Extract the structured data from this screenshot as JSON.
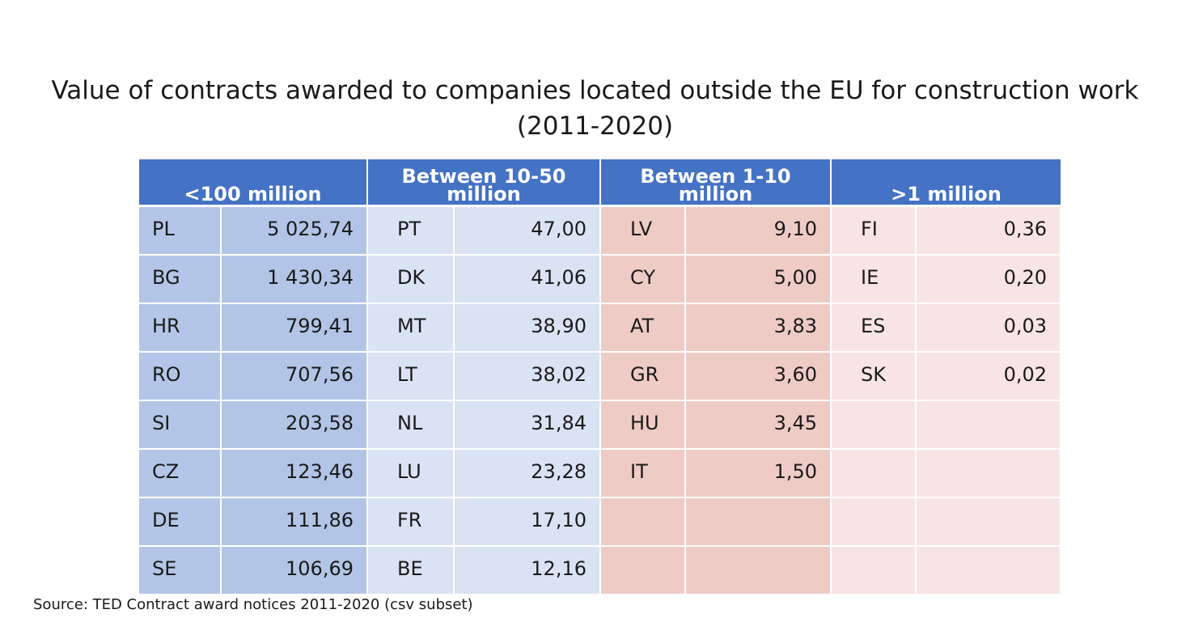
{
  "title_line1": "Value of contracts awarded to companies located outside the EU for construction work",
  "title_line2": "(2011-2020)",
  "source": "Source: TED Contract award notices 2011-2020 (csv subset)",
  "colors": {
    "header": "#4472c4",
    "group1": "#b4c6e7",
    "group2": "#dae3f3",
    "group3": "#efcbc6",
    "group4": "#f8e5e3"
  },
  "chart_data": {
    "type": "table",
    "title": "Value of contracts awarded to companies located outside the EU for construction work (2011-2020)",
    "groups": [
      {
        "header": "<100 million",
        "rows": [
          {
            "code": "PL",
            "value": "5 025,74"
          },
          {
            "code": "BG",
            "value": "1 430,34"
          },
          {
            "code": "HR",
            "value": "799,41"
          },
          {
            "code": "RO",
            "value": "707,56"
          },
          {
            "code": "SI",
            "value": "203,58"
          },
          {
            "code": "CZ",
            "value": "123,46"
          },
          {
            "code": "DE",
            "value": "111,86"
          },
          {
            "code": "SE",
            "value": "106,69"
          }
        ]
      },
      {
        "header": "Between 10-50 million",
        "rows": [
          {
            "code": "PT",
            "value": "47,00"
          },
          {
            "code": "DK",
            "value": "41,06"
          },
          {
            "code": "MT",
            "value": "38,90"
          },
          {
            "code": "LT",
            "value": "38,02"
          },
          {
            "code": "NL",
            "value": "31,84"
          },
          {
            "code": "LU",
            "value": "23,28"
          },
          {
            "code": "FR",
            "value": "17,10"
          },
          {
            "code": "BE",
            "value": "12,16"
          }
        ]
      },
      {
        "header": "Between 1-10 million",
        "rows": [
          {
            "code": "LV",
            "value": "9,10"
          },
          {
            "code": "CY",
            "value": "5,00"
          },
          {
            "code": "AT",
            "value": "3,83"
          },
          {
            "code": "GR",
            "value": "3,60"
          },
          {
            "code": "HU",
            "value": "3,45"
          },
          {
            "code": "IT",
            "value": "1,50"
          },
          {
            "code": "",
            "value": ""
          },
          {
            "code": "",
            "value": ""
          }
        ]
      },
      {
        "header": ">1 million",
        "rows": [
          {
            "code": "FI",
            "value": "0,36"
          },
          {
            "code": "IE",
            "value": "0,20"
          },
          {
            "code": "ES",
            "value": "0,03"
          },
          {
            "code": "SK",
            "value": "0,02"
          },
          {
            "code": "",
            "value": ""
          },
          {
            "code": "",
            "value": ""
          },
          {
            "code": "",
            "value": ""
          },
          {
            "code": "",
            "value": ""
          }
        ]
      }
    ]
  }
}
